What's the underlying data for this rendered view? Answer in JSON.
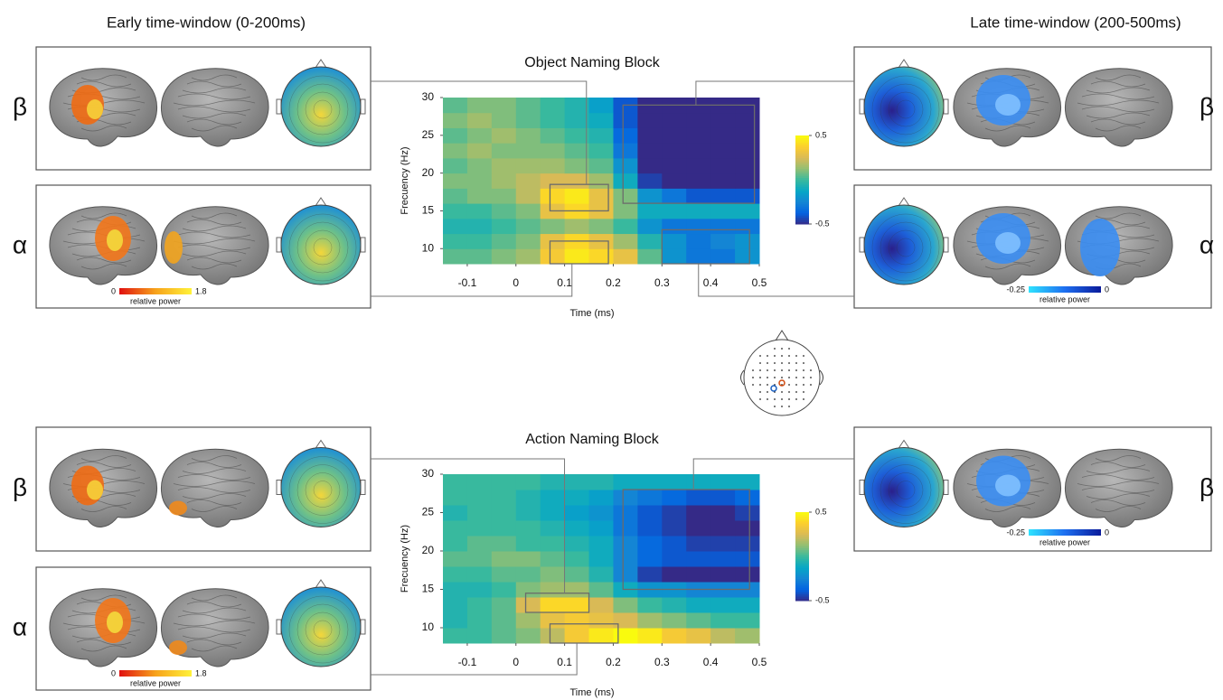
{
  "figure": {
    "early_title": "Early time-window (0-200ms)",
    "late_title": "Late time-window (200-500ms)",
    "left_panels": [
      {
        "band": "β"
      },
      {
        "band": "α",
        "scale_min": 0,
        "scale_max": 1.8,
        "scale_label": "relative power"
      },
      {
        "band": "β"
      },
      {
        "band": "α",
        "scale_min": 0,
        "scale_max": 1.8,
        "scale_label": "relative power"
      }
    ],
    "right_panels": [
      {
        "band": "β"
      },
      {
        "band": "α",
        "scale_min": -0.25,
        "scale_max": 0,
        "scale_label": "relative power"
      },
      {
        "band": "β",
        "scale_min": -0.25,
        "scale_max": 0,
        "scale_label": "relative power"
      }
    ]
  },
  "chart_data": [
    {
      "type": "heatmap",
      "title": "Object Naming Block",
      "xlabel": "Time (ms)",
      "ylabel": "Frecuency (Hz)",
      "x": [
        -0.125,
        -0.075,
        -0.025,
        0.025,
        0.075,
        0.125,
        0.175,
        0.225,
        0.275,
        0.325,
        0.375,
        0.425,
        0.475
      ],
      "y": [
        9,
        11,
        13,
        15,
        17,
        19,
        21,
        23,
        25,
        27,
        29
      ],
      "values": [
        [
          0.05,
          0.05,
          0.1,
          0.15,
          0.35,
          0.45,
          0.4,
          0.3,
          0.05,
          -0.2,
          -0.3,
          -0.3,
          -0.2
        ],
        [
          0,
          0,
          0.05,
          0.1,
          0.3,
          0.4,
          0.3,
          0.15,
          -0.05,
          -0.2,
          -0.3,
          -0.25,
          -0.2
        ],
        [
          -0.05,
          -0.05,
          0,
          0.05,
          0.1,
          0.15,
          0.1,
          0,
          -0.2,
          -0.3,
          -0.3,
          -0.3,
          -0.3
        ],
        [
          0,
          0,
          0.05,
          0.1,
          0.3,
          0.4,
          0.3,
          0.1,
          -0.1,
          -0.1,
          -0.1,
          -0.1,
          -0.1
        ],
        [
          0.05,
          0.1,
          0.1,
          0.2,
          0.4,
          0.45,
          0.3,
          0.1,
          -0.2,
          -0.3,
          -0.4,
          -0.4,
          -0.4
        ],
        [
          0.1,
          0.1,
          0.15,
          0.2,
          0.25,
          0.25,
          0.15,
          -0.1,
          -0.45,
          -0.5,
          -0.5,
          -0.5,
          -0.5
        ],
        [
          0.05,
          0.1,
          0.15,
          0.15,
          0.15,
          0.1,
          0.05,
          -0.2,
          -0.5,
          -0.5,
          -0.5,
          -0.5,
          -0.5
        ],
        [
          0.1,
          0.15,
          0.1,
          0.1,
          0.1,
          0.05,
          0,
          -0.3,
          -0.5,
          -0.5,
          -0.5,
          -0.5,
          -0.5
        ],
        [
          0.05,
          0.1,
          0.15,
          0.1,
          0.05,
          0,
          -0.05,
          -0.35,
          -0.5,
          -0.5,
          -0.5,
          -0.5,
          -0.5
        ],
        [
          0.1,
          0.15,
          0.1,
          0.05,
          0,
          -0.05,
          -0.1,
          -0.4,
          -0.5,
          -0.5,
          -0.5,
          -0.5,
          -0.5
        ],
        [
          0.05,
          0.1,
          0.1,
          0.05,
          0,
          -0.05,
          -0.15,
          -0.4,
          -0.5,
          -0.5,
          -0.5,
          -0.5,
          -0.5
        ]
      ],
      "xlim": [
        -0.15,
        0.5
      ],
      "xticks": [
        -0.1,
        0,
        0.1,
        0.2,
        0.3,
        0.4,
        0.5
      ],
      "ylim": [
        8,
        30
      ],
      "yticks": [
        10,
        15,
        20,
        25,
        30
      ],
      "zlim": [
        -0.5,
        0.5
      ],
      "colorbar_ticks": [
        0.5,
        -0.5
      ],
      "colormap": [
        "#352a87",
        "#0363e1",
        "#1485d4",
        "#06a7c6",
        "#38b99e",
        "#92bf73",
        "#d9ba56",
        "#fcce2e",
        "#f9fb0e"
      ],
      "regions": [
        {
          "x": [
            0.07,
            0.19
          ],
          "y": [
            15,
            18.5
          ]
        },
        {
          "x": [
            0.07,
            0.19
          ],
          "y": [
            8,
            11
          ]
        },
        {
          "x": [
            0.22,
            0.49
          ],
          "y": [
            16,
            29
          ]
        },
        {
          "x": [
            0.3,
            0.48
          ],
          "y": [
            8,
            12.5
          ]
        }
      ]
    },
    {
      "type": "heatmap",
      "title": "Action Naming Block",
      "xlabel": "Time (ms)",
      "ylabel": "Frecuency (Hz)",
      "x": [
        -0.125,
        -0.075,
        -0.025,
        0.025,
        0.075,
        0.125,
        0.175,
        0.225,
        0.275,
        0.325,
        0.375,
        0.425,
        0.475
      ],
      "y": [
        9,
        11,
        13,
        15,
        17,
        19,
        21,
        23,
        25,
        27,
        29
      ],
      "values": [
        [
          0,
          0,
          0.05,
          0.1,
          0.2,
          0.35,
          0.45,
          0.5,
          0.45,
          0.35,
          0.3,
          0.2,
          0.15
        ],
        [
          -0.05,
          0,
          0.05,
          0.15,
          0.3,
          0.35,
          0.3,
          0.25,
          0.15,
          0.1,
          0.05,
          0,
          0
        ],
        [
          -0.05,
          0,
          0.05,
          0.25,
          0.4,
          0.4,
          0.25,
          0.1,
          0,
          -0.05,
          -0.1,
          -0.1,
          -0.1
        ],
        [
          -0.05,
          -0.05,
          0,
          0.1,
          0.15,
          0.15,
          0.05,
          -0.1,
          -0.2,
          -0.2,
          -0.25,
          -0.25,
          -0.25
        ],
        [
          0,
          0,
          0.05,
          0.05,
          0.1,
          0.05,
          -0.05,
          -0.25,
          -0.45,
          -0.5,
          -0.5,
          -0.5,
          -0.5
        ],
        [
          0.05,
          0.05,
          0.1,
          0.1,
          0.05,
          0,
          -0.1,
          -0.25,
          -0.35,
          -0.4,
          -0.4,
          -0.4,
          -0.4
        ],
        [
          0,
          0.05,
          0.05,
          0,
          0,
          -0.05,
          -0.1,
          -0.25,
          -0.35,
          -0.4,
          -0.45,
          -0.45,
          -0.45
        ],
        [
          0,
          0,
          0,
          0,
          -0.05,
          -0.1,
          -0.15,
          -0.3,
          -0.4,
          -0.45,
          -0.5,
          -0.5,
          -0.5
        ],
        [
          -0.05,
          0,
          0,
          -0.05,
          -0.1,
          -0.15,
          -0.2,
          -0.3,
          -0.4,
          -0.45,
          -0.5,
          -0.5,
          -0.45
        ],
        [
          0,
          0,
          0,
          -0.05,
          -0.1,
          -0.1,
          -0.15,
          -0.25,
          -0.3,
          -0.35,
          -0.4,
          -0.4,
          -0.35
        ],
        [
          0,
          0,
          0,
          0,
          -0.05,
          -0.05,
          -0.05,
          -0.1,
          -0.1,
          -0.1,
          -0.1,
          -0.1,
          -0.1
        ]
      ],
      "xlim": [
        -0.15,
        0.5
      ],
      "xticks": [
        -0.1,
        0,
        0.1,
        0.2,
        0.3,
        0.4,
        0.5
      ],
      "ylim": [
        8,
        30
      ],
      "yticks": [
        10,
        15,
        20,
        25,
        30
      ],
      "zlim": [
        -0.5,
        0.5
      ],
      "colorbar_ticks": [
        0.5,
        -0.5
      ],
      "colormap": [
        "#352a87",
        "#0363e1",
        "#1485d4",
        "#06a7c6",
        "#38b99e",
        "#92bf73",
        "#d9ba56",
        "#fcce2e",
        "#f9fb0e"
      ],
      "regions": [
        {
          "x": [
            0.02,
            0.15
          ],
          "y": [
            12,
            14.5
          ]
        },
        {
          "x": [
            0.07,
            0.21
          ],
          "y": [
            8,
            10.5
          ]
        },
        {
          "x": [
            0.22,
            0.48
          ],
          "y": [
            15,
            28
          ]
        }
      ]
    }
  ]
}
